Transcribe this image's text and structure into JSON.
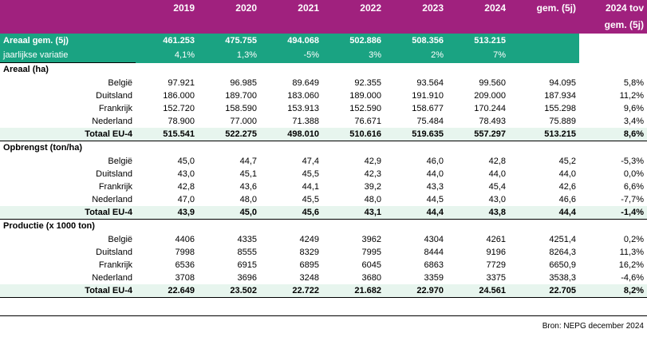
{
  "header": {
    "corner": "",
    "years": [
      "2019",
      "2020",
      "2021",
      "2022",
      "2023",
      "2024"
    ],
    "avg": "gem. (5j)",
    "trend_line1": "2024 tov",
    "trend_line2": "gem. (5j)"
  },
  "areaal_gem": {
    "label": "Areaal gem. (5j)",
    "values": [
      "461.253",
      "475.755",
      "494.068",
      "502.886",
      "508.356",
      "513.215"
    ]
  },
  "jaarlijkse": {
    "label": "jaarlijkse variatie",
    "values": [
      "4,1%",
      "1,3%",
      "-5%",
      "3%",
      "2%",
      "7%"
    ]
  },
  "sections": [
    {
      "title": "Areaal (ha)",
      "rows": [
        {
          "label": "België",
          "values": [
            "97.921",
            "96.985",
            "89.649",
            "92.355",
            "93.564",
            "99.560"
          ],
          "avg": "94.095",
          "trend": "5,8%"
        },
        {
          "label": "Duitsland",
          "values": [
            "186.000",
            "189.700",
            "183.060",
            "189.000",
            "191.910",
            "209.000"
          ],
          "avg": "187.934",
          "trend": "11,2%"
        },
        {
          "label": "Frankrijk",
          "values": [
            "152.720",
            "158.590",
            "153.913",
            "152.590",
            "158.677",
            "170.244"
          ],
          "avg": "155.298",
          "trend": "9,6%"
        },
        {
          "label": "Nederland",
          "values": [
            "78.900",
            "77.000",
            "71.388",
            "76.671",
            "75.484",
            "78.493"
          ],
          "avg": "75.889",
          "trend": "3,4%"
        }
      ],
      "total": {
        "label": "Totaal EU-4",
        "values": [
          "515.541",
          "522.275",
          "498.010",
          "510.616",
          "519.635",
          "557.297"
        ],
        "avg": "513.215",
        "trend": "8,6%"
      }
    },
    {
      "title": "Opbrengst (ton/ha)",
      "rows": [
        {
          "label": "België",
          "values": [
            "45,0",
            "44,7",
            "47,4",
            "42,9",
            "46,0",
            "42,8"
          ],
          "avg": "45,2",
          "trend": "-5,3%"
        },
        {
          "label": "Duitsland",
          "values": [
            "43,0",
            "45,1",
            "45,5",
            "42,3",
            "44,0",
            "44,0"
          ],
          "avg": "44,0",
          "trend": "0,0%"
        },
        {
          "label": "Frankrijk",
          "values": [
            "42,8",
            "43,6",
            "44,1",
            "39,2",
            "43,3",
            "45,4"
          ],
          "avg": "42,6",
          "trend": "6,6%"
        },
        {
          "label": "Nederland",
          "values": [
            "47,0",
            "48,0",
            "45,5",
            "48,0",
            "44,5",
            "43,0"
          ],
          "avg": "46,6",
          "trend": "-7,7%"
        }
      ],
      "total": {
        "label": "Totaal EU-4",
        "values": [
          "43,9",
          "45,0",
          "45,6",
          "43,1",
          "44,4",
          "43,8"
        ],
        "avg": "44,4",
        "trend": "-1,4%"
      }
    },
    {
      "title": "Productie (x 1000 ton)",
      "rows": [
        {
          "label": "België",
          "values": [
            "4406",
            "4335",
            "4249",
            "3962",
            "4304",
            "4261"
          ],
          "avg": "4251,4",
          "trend": "0,2%"
        },
        {
          "label": "Duitsland",
          "values": [
            "7998",
            "8555",
            "8329",
            "7995",
            "8444",
            "9196"
          ],
          "avg": "8264,3",
          "trend": "11,3%"
        },
        {
          "label": "Frankrijk",
          "values": [
            "6536",
            "6915",
            "6895",
            "6045",
            "6863",
            "7729"
          ],
          "avg": "6650,9",
          "trend": "16,2%"
        },
        {
          "label": "Nederland",
          "values": [
            "3708",
            "3696",
            "3248",
            "3680",
            "3359",
            "3375"
          ],
          "avg": "3538,3",
          "trend": "-4,6%"
        }
      ],
      "total": {
        "label": "Totaal EU-4",
        "values": [
          "22.649",
          "23.502",
          "22.722",
          "21.682",
          "22.970",
          "24.561"
        ],
        "avg": "22.705",
        "trend": "8,2%"
      }
    }
  ],
  "source": "Bron: NEPG december 2024"
}
